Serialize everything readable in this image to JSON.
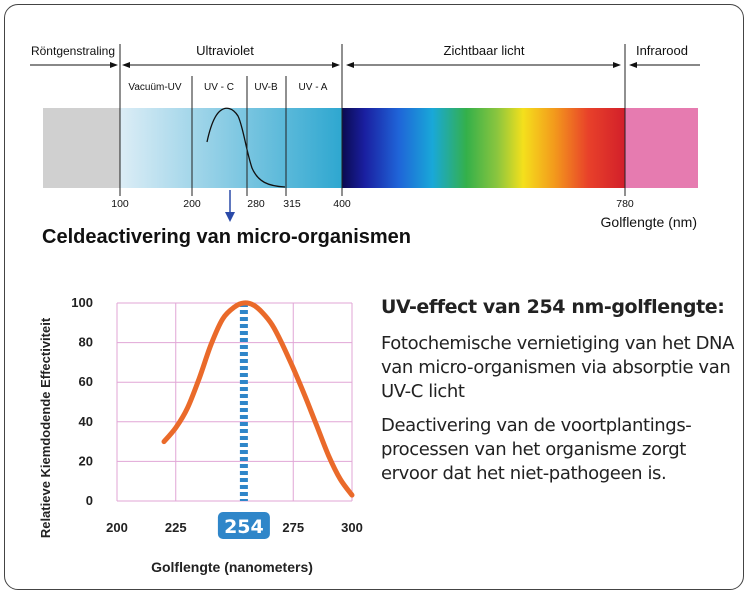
{
  "spectrum": {
    "region_labels": {
      "xray": "Röntgenstraling",
      "uv": "Ultraviolet",
      "visible": "Zichtbaar licht",
      "ir": "Infrarood"
    },
    "sub_labels": {
      "vacuum_uv": "Vacuüm-UV",
      "uvc": "UV - C",
      "uvb": "UV-B",
      "uva": "UV - A"
    },
    "ticks": [
      "100",
      "200",
      "280",
      "315",
      "400",
      "780"
    ],
    "axis_label": "Golflengte (nm)",
    "colors": {
      "xray": "#d0d0d0",
      "uv_light": "#dcedf6",
      "uv_dark": "#2ea7d0",
      "infrared": "#e67bb0",
      "arrow": "#2a4aa8"
    }
  },
  "section_title": "Celdeactivering van micro-organismen",
  "chart_data": {
    "type": "line",
    "ylabel": "Relatieve Kiemdodende Effectiviteit",
    "xlabel": "Golflengte (nanometers)",
    "x_ticks": [
      "200",
      "225",
      "254",
      "275",
      "300"
    ],
    "y_ticks": [
      "100",
      "80",
      "60",
      "40",
      "20",
      "0"
    ],
    "xlim": [
      200,
      300
    ],
    "ylim": [
      0,
      100
    ],
    "highlight_x": "254",
    "series": [
      {
        "x": [
          220,
          225,
          230,
          235,
          240,
          245,
          250,
          254,
          258,
          262,
          266,
          270,
          275,
          280,
          285,
          290,
          295,
          300
        ],
        "y": [
          30,
          37,
          47,
          62,
          79,
          92,
          98,
          100,
          99,
          95,
          89,
          80,
          67,
          53,
          38,
          23,
          11,
          3
        ]
      }
    ],
    "colors": {
      "curve": "#ea6a2a",
      "grid": "#e1a6d6",
      "highlight": "#2f86c9"
    }
  },
  "description": {
    "heading": "UV-effect van 254 nm-golflengte:",
    "para1": "Fotochemische vernietiging van het DNA van micro-organismen via absorptie van UV-C licht",
    "para2": "Deactivering van de voortplantings-processen van het organisme zorgt ervoor dat het niet-pathogeen is."
  }
}
